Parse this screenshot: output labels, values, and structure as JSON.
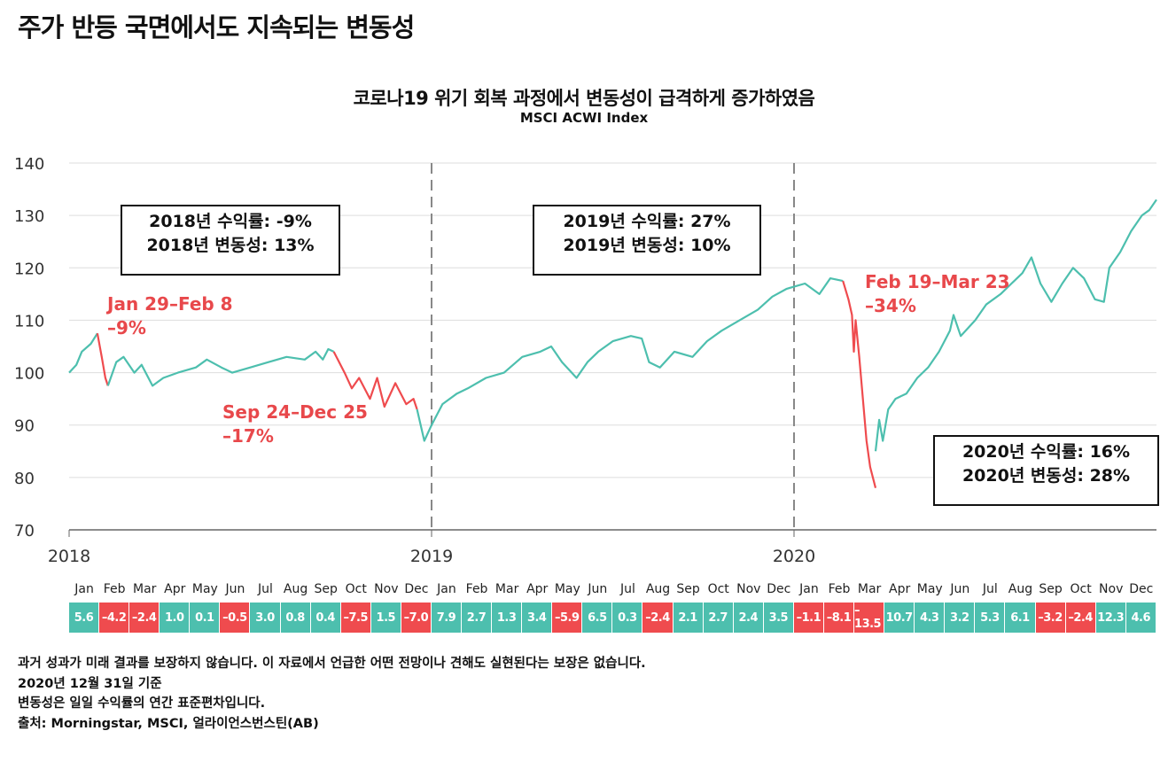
{
  "header": {
    "title": "주가 반등 국면에서도 지속되는 변동성"
  },
  "chart_data": {
    "type": "line",
    "title": "코로나19 위기 회복 과정에서 변동성이 급격하게 증가하였음",
    "subtitle": "MSCI ACWI Index",
    "ylim": [
      70,
      140
    ],
    "yticks": [
      70,
      80,
      90,
      100,
      110,
      120,
      130,
      140
    ],
    "xlim": [
      2018,
      2021
    ],
    "xticks": [
      {
        "value": 2018,
        "label": "2018"
      },
      {
        "value": 2019,
        "label": "2019"
      },
      {
        "value": 2020,
        "label": "2020"
      }
    ],
    "grid": true,
    "colors": {
      "up": "#4dbfae",
      "down": "#ef4b4e"
    },
    "segments": [
      {
        "color": "up",
        "points": [
          [
            2018.0,
            100
          ],
          [
            2018.02,
            101.5
          ],
          [
            2018.035,
            104
          ],
          [
            2018.06,
            105.5
          ],
          [
            2018.078,
            107.5
          ]
        ]
      },
      {
        "color": "down",
        "points": [
          [
            2018.078,
            107.5
          ],
          [
            2018.09,
            103
          ],
          [
            2018.1,
            99
          ],
          [
            2018.107,
            97.5
          ]
        ]
      },
      {
        "color": "up",
        "points": [
          [
            2018.107,
            97.5
          ],
          [
            2018.13,
            102
          ],
          [
            2018.15,
            103
          ],
          [
            2018.18,
            100
          ],
          [
            2018.2,
            101.5
          ],
          [
            2018.23,
            97.5
          ],
          [
            2018.26,
            99
          ],
          [
            2018.3,
            100
          ],
          [
            2018.35,
            101
          ],
          [
            2018.38,
            102.5
          ],
          [
            2018.42,
            101
          ],
          [
            2018.45,
            100
          ],
          [
            2018.5,
            101
          ],
          [
            2018.55,
            102
          ],
          [
            2018.6,
            103
          ],
          [
            2018.65,
            102.5
          ],
          [
            2018.68,
            104
          ],
          [
            2018.7,
            102.5
          ],
          [
            2018.715,
            104.5
          ],
          [
            2018.73,
            104
          ]
        ]
      },
      {
        "color": "down",
        "points": [
          [
            2018.73,
            104
          ],
          [
            2018.76,
            100
          ],
          [
            2018.78,
            97
          ],
          [
            2018.8,
            99
          ],
          [
            2018.83,
            95
          ],
          [
            2018.85,
            99
          ],
          [
            2018.87,
            93.5
          ],
          [
            2018.9,
            98
          ],
          [
            2018.93,
            94
          ],
          [
            2018.95,
            95
          ],
          [
            2018.96,
            93
          ]
        ]
      },
      {
        "color": "up",
        "points": [
          [
            2018.96,
            93
          ],
          [
            2018.98,
            87
          ],
          [
            2019.0,
            90
          ],
          [
            2019.03,
            94
          ],
          [
            2019.07,
            96
          ],
          [
            2019.1,
            97
          ],
          [
            2019.15,
            99
          ],
          [
            2019.2,
            100
          ],
          [
            2019.25,
            103
          ],
          [
            2019.3,
            104
          ],
          [
            2019.33,
            105
          ],
          [
            2019.36,
            102
          ],
          [
            2019.4,
            99
          ],
          [
            2019.43,
            102
          ],
          [
            2019.46,
            104
          ],
          [
            2019.5,
            106
          ],
          [
            2019.55,
            107
          ],
          [
            2019.58,
            106.5
          ],
          [
            2019.6,
            102
          ],
          [
            2019.63,
            101
          ],
          [
            2019.67,
            104
          ],
          [
            2019.72,
            103
          ],
          [
            2019.76,
            106
          ],
          [
            2019.8,
            108
          ],
          [
            2019.85,
            110
          ],
          [
            2019.9,
            112
          ],
          [
            2019.94,
            114.5
          ],
          [
            2019.98,
            116
          ],
          [
            2020.03,
            117
          ],
          [
            2020.07,
            115
          ],
          [
            2020.1,
            118
          ],
          [
            2020.135,
            117.5
          ]
        ]
      },
      {
        "color": "down",
        "points": [
          [
            2020.135,
            117.5
          ],
          [
            2020.15,
            114
          ],
          [
            2020.16,
            111
          ],
          [
            2020.165,
            104
          ],
          [
            2020.17,
            110
          ],
          [
            2020.18,
            103
          ],
          [
            2020.19,
            95
          ],
          [
            2020.2,
            87
          ],
          [
            2020.21,
            82
          ],
          [
            2020.225,
            78
          ]
        ]
      },
      {
        "color": "up",
        "points": [
          [
            2020.225,
            85
          ],
          [
            2020.235,
            91
          ],
          [
            2020.245,
            87
          ],
          [
            2020.26,
            93
          ],
          [
            2020.28,
            95
          ],
          [
            2020.31,
            96
          ],
          [
            2020.34,
            99
          ],
          [
            2020.37,
            101
          ],
          [
            2020.4,
            104
          ],
          [
            2020.43,
            108
          ],
          [
            2020.44,
            111
          ],
          [
            2020.46,
            107
          ],
          [
            2020.5,
            110
          ],
          [
            2020.53,
            113
          ],
          [
            2020.57,
            115
          ],
          [
            2020.6,
            117
          ],
          [
            2020.63,
            119
          ],
          [
            2020.655,
            122
          ],
          [
            2020.68,
            117
          ],
          [
            2020.71,
            113.5
          ],
          [
            2020.74,
            117
          ],
          [
            2020.77,
            120
          ],
          [
            2020.8,
            118
          ],
          [
            2020.83,
            114
          ],
          [
            2020.855,
            113.5
          ],
          [
            2020.87,
            120
          ],
          [
            2020.9,
            123
          ],
          [
            2020.93,
            127
          ],
          [
            2020.96,
            130
          ],
          [
            2020.98,
            131
          ],
          [
            2021.0,
            133
          ]
        ]
      }
    ],
    "annotations": [
      {
        "lines": [
          "Jan 29–Feb 8",
          "–9%"
        ]
      },
      {
        "lines": [
          "Sep 24–Dec 25",
          "–17%"
        ]
      },
      {
        "lines": [
          "Feb 19–Mar 23",
          "–34%"
        ]
      }
    ],
    "boxes": [
      {
        "lines": [
          "2018년 수익률: -9%",
          "2018년 변동성: 13%"
        ]
      },
      {
        "lines": [
          "2019년 수익률: 27%",
          "2019년 변동성: 10%"
        ]
      },
      {
        "lines": [
          "2020년 수익률: 16%",
          "2020년 변동성: 28%"
        ]
      }
    ],
    "monthly_returns": {
      "months": [
        "Jan",
        "Feb",
        "Mar",
        "Apr",
        "May",
        "Jun",
        "Jul",
        "Aug",
        "Sep",
        "Oct",
        "Nov",
        "Dec",
        "Jan",
        "Feb",
        "Mar",
        "Apr",
        "May",
        "Jun",
        "Jul",
        "Aug",
        "Sep",
        "Oct",
        "Nov",
        "Dec",
        "Jan",
        "Feb",
        "Mar",
        "Apr",
        "May",
        "Jun",
        "Jul",
        "Aug",
        "Sep",
        "Oct",
        "Nov",
        "Dec"
      ],
      "values": [
        "5.6",
        "–4.2",
        "–2.4",
        "1.0",
        "0.1",
        "–0.5",
        "3.0",
        "0.8",
        "0.4",
        "–7.5",
        "1.5",
        "–7.0",
        "7.9",
        "2.7",
        "1.3",
        "3.4",
        "–5.9",
        "6.5",
        "0.3",
        "–2.4",
        "2.1",
        "2.7",
        "2.4",
        "3.5",
        "–1.1",
        "–8.1",
        "–13.5",
        "10.7",
        "4.3",
        "3.2",
        "5.3",
        "6.1",
        "–3.2",
        "–2.4",
        "12.3",
        "4.6"
      ]
    }
  },
  "footer": [
    "과거 성과가 미래 결과를 보장하지 않습니다. 이 자료에서 언급한 어떤 전망이나 견해도 실현된다는 보장은 없습니다.",
    "2020년 12월 31일 기준",
    "변동성은 일일 수익률의 연간 표준편차입니다.",
    "출처: Morningstar, MSCI, 얼라이언스번스틴(AB)"
  ]
}
